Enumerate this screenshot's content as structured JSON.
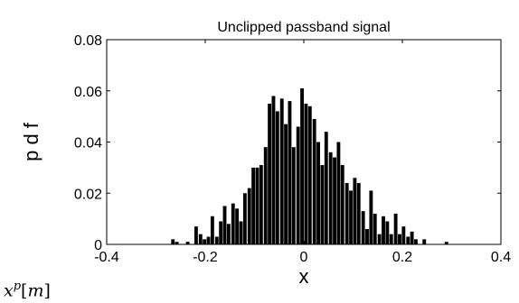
{
  "caption": {
    "var": "x",
    "sup": "p",
    "open": "[",
    "index": "m",
    "close": "]"
  },
  "chart_data": {
    "type": "bar",
    "title": "Unclipped passband signal",
    "xlabel": "x",
    "ylabel": "p d f",
    "xlim": [
      -0.4,
      0.4
    ],
    "ylim": [
      0,
      0.08
    ],
    "xticks": [
      -0.4,
      -0.2,
      0,
      0.2,
      0.4
    ],
    "xtick_labels": [
      "-0.4",
      "-0.2",
      "0",
      "0.2",
      "0.4"
    ],
    "yticks": [
      0,
      0.02,
      0.04,
      0.06,
      0.08
    ],
    "ytick_labels": [
      "0",
      "0.02",
      "0.04",
      "0.06",
      "0.08"
    ],
    "grid": false,
    "bar_color": "#000000",
    "x": [
      -0.265,
      -0.257,
      -0.235,
      -0.218,
      -0.209,
      -0.201,
      -0.193,
      -0.185,
      -0.176,
      -0.168,
      -0.16,
      -0.152,
      -0.143,
      -0.135,
      -0.127,
      -0.119,
      -0.11,
      -0.102,
      -0.094,
      -0.086,
      -0.077,
      -0.069,
      -0.061,
      -0.053,
      -0.044,
      -0.036,
      -0.028,
      -0.02,
      -0.011,
      -0.003,
      0.005,
      0.013,
      0.022,
      0.03,
      0.038,
      0.046,
      0.055,
      0.063,
      0.071,
      0.079,
      0.088,
      0.096,
      0.104,
      0.112,
      0.121,
      0.129,
      0.137,
      0.145,
      0.154,
      0.162,
      0.17,
      0.178,
      0.187,
      0.195,
      0.203,
      0.212,
      0.22,
      0.228,
      0.245,
      0.29
    ],
    "values": [
      0.002,
      0.001,
      0.001,
      0.007,
      0.004,
      0.002,
      0.003,
      0.011,
      0.003,
      0.009,
      0.015,
      0.008,
      0.016,
      0.014,
      0.009,
      0.02,
      0.022,
      0.03,
      0.03,
      0.031,
      0.038,
      0.055,
      0.058,
      0.052,
      0.057,
      0.047,
      0.056,
      0.038,
      0.046,
      0.061,
      0.055,
      0.054,
      0.049,
      0.04,
      0.031,
      0.044,
      0.036,
      0.034,
      0.04,
      0.031,
      0.024,
      0.021,
      0.026,
      0.024,
      0.013,
      0.006,
      0.021,
      0.012,
      0.004,
      0.011,
      0.009,
      0.004,
      0.012,
      0.004,
      0.007,
      0.003,
      0.005,
      0.002,
      0.002,
      0.001
    ]
  }
}
